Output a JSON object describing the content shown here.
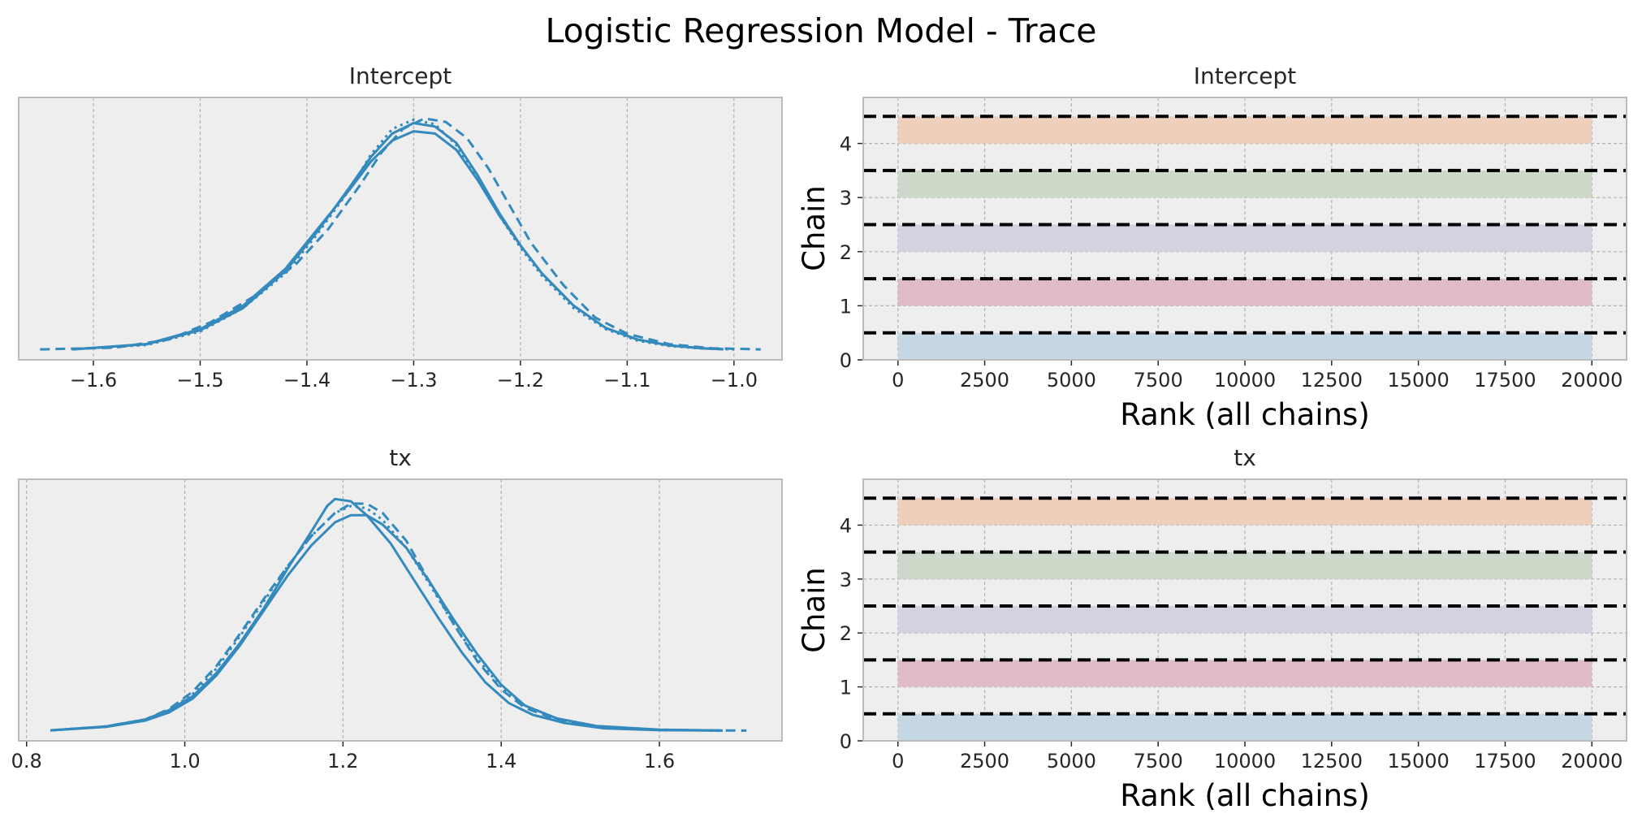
{
  "title": "Logistic Regression Model - Trace",
  "colors": {
    "kde": "#348abd",
    "panel_bg": "#eeeeee",
    "grid": "#b2b2b2",
    "frame": "#bcbcbc",
    "chain_fills": [
      "#c5d7e2",
      "#e0bdc6",
      "#d5d1e0",
      "#ccd9c8",
      "#edcfbc"
    ],
    "hline": "#000000"
  },
  "chart_data": [
    {
      "type": "line",
      "title": "Intercept",
      "xlabel": "",
      "ylabel": "",
      "xlim": [
        -1.67,
        -0.955
      ],
      "xticks": [
        -1.6,
        -1.5,
        -1.4,
        -1.3,
        -1.2,
        -1.1,
        -1.0
      ],
      "xtick_labels": [
        "−1.6",
        "−1.5",
        "−1.4",
        "−1.3",
        "−1.2",
        "−1.1",
        "−1.0"
      ],
      "yticks_visible": false,
      "grid": "x",
      "series": [
        {
          "linestyle": "solid",
          "x": [
            -1.62,
            -1.55,
            -1.5,
            -1.46,
            -1.42,
            -1.39,
            -1.36,
            -1.34,
            -1.32,
            -1.3,
            -1.28,
            -1.26,
            -1.24,
            -1.22,
            -1.2,
            -1.18,
            -1.15,
            -1.12,
            -1.09,
            -1.06,
            -1.03,
            -1.01
          ],
          "y": [
            0.003,
            0.025,
            0.085,
            0.18,
            0.34,
            0.51,
            0.7,
            0.83,
            0.93,
            0.975,
            0.96,
            0.89,
            0.75,
            0.59,
            0.45,
            0.33,
            0.19,
            0.095,
            0.045,
            0.02,
            0.008,
            0.004
          ]
        },
        {
          "linestyle": "dashed",
          "x": [
            -1.65,
            -1.58,
            -1.53,
            -1.49,
            -1.45,
            -1.41,
            -1.38,
            -1.35,
            -1.33,
            -1.31,
            -1.29,
            -1.27,
            -1.25,
            -1.23,
            -1.21,
            -1.19,
            -1.16,
            -1.13,
            -1.1,
            -1.06,
            -1.02,
            -0.975
          ],
          "y": [
            0.003,
            0.01,
            0.045,
            0.12,
            0.23,
            0.37,
            0.52,
            0.71,
            0.85,
            0.95,
            0.995,
            0.98,
            0.91,
            0.78,
            0.62,
            0.46,
            0.28,
            0.14,
            0.07,
            0.025,
            0.008,
            0.003
          ]
        },
        {
          "linestyle": "dotted",
          "x": [
            -1.62,
            -1.55,
            -1.5,
            -1.46,
            -1.42,
            -1.39,
            -1.36,
            -1.34,
            -1.32,
            -1.3,
            -1.28,
            -1.26,
            -1.24,
            -1.22,
            -1.2,
            -1.18,
            -1.15,
            -1.12,
            -1.09,
            -1.06,
            -1.03,
            -1.0
          ],
          "y": [
            0.004,
            0.022,
            0.08,
            0.18,
            0.33,
            0.5,
            0.69,
            0.84,
            0.95,
            0.99,
            0.97,
            0.88,
            0.74,
            0.58,
            0.44,
            0.32,
            0.18,
            0.09,
            0.04,
            0.017,
            0.007,
            0.003
          ]
        },
        {
          "linestyle": "solid",
          "x": [
            -1.62,
            -1.55,
            -1.5,
            -1.46,
            -1.42,
            -1.39,
            -1.36,
            -1.34,
            -1.32,
            -1.3,
            -1.28,
            -1.26,
            -1.24,
            -1.22,
            -1.2,
            -1.18,
            -1.15,
            -1.12,
            -1.09,
            -1.06,
            -1.03,
            -1.01
          ],
          "y": [
            0.003,
            0.026,
            0.09,
            0.19,
            0.35,
            0.52,
            0.69,
            0.81,
            0.9,
            0.94,
            0.93,
            0.86,
            0.73,
            0.58,
            0.45,
            0.33,
            0.19,
            0.095,
            0.045,
            0.02,
            0.008,
            0.004
          ]
        }
      ]
    },
    {
      "type": "bar",
      "title": "Intercept",
      "xlabel": "Rank (all chains)",
      "ylabel": "Chain",
      "xlim": [
        -1000,
        21000
      ],
      "ylim": [
        0,
        4.85
      ],
      "xticks": [
        0,
        2500,
        5000,
        7500,
        10000,
        12500,
        15000,
        17500,
        20000
      ],
      "yticks": [
        0,
        1,
        2,
        3,
        4
      ],
      "chains": [
        0,
        1,
        2,
        3,
        4
      ],
      "rank_range": [
        0,
        20000
      ],
      "bar_height": 0.5,
      "hlines": [
        0.5,
        1.5,
        2.5,
        3.5,
        4.5
      ],
      "grid": true
    },
    {
      "type": "line",
      "title": "tx",
      "xlabel": "",
      "ylabel": "",
      "xlim": [
        0.79,
        1.755
      ],
      "xticks": [
        0.8,
        1.0,
        1.2,
        1.4,
        1.6
      ],
      "xtick_labels": [
        "0.8",
        "1.0",
        "1.2",
        "1.4",
        "1.6"
      ],
      "yticks_visible": false,
      "grid": "x",
      "series": [
        {
          "linestyle": "solid",
          "x": [
            0.83,
            0.9,
            0.95,
            0.98,
            1.01,
            1.04,
            1.07,
            1.1,
            1.13,
            1.16,
            1.18,
            1.19,
            1.21,
            1.23,
            1.26,
            1.29,
            1.32,
            1.35,
            1.38,
            1.41,
            1.44,
            1.48,
            1.53,
            1.6,
            1.68
          ],
          "y": [
            0.003,
            0.02,
            0.05,
            0.09,
            0.15,
            0.25,
            0.38,
            0.53,
            0.7,
            0.86,
            0.97,
            1.0,
            0.99,
            0.93,
            0.81,
            0.65,
            0.49,
            0.34,
            0.21,
            0.12,
            0.07,
            0.035,
            0.012,
            0.004,
            0.002
          ]
        },
        {
          "linestyle": "dashed",
          "x": [
            0.83,
            0.9,
            0.95,
            0.98,
            1.01,
            1.04,
            1.07,
            1.1,
            1.13,
            1.16,
            1.19,
            1.21,
            1.23,
            1.25,
            1.28,
            1.31,
            1.34,
            1.37,
            1.4,
            1.43,
            1.47,
            1.52,
            1.6,
            1.71
          ],
          "y": [
            0.003,
            0.02,
            0.05,
            0.095,
            0.17,
            0.28,
            0.42,
            0.57,
            0.71,
            0.84,
            0.94,
            0.98,
            0.98,
            0.94,
            0.82,
            0.64,
            0.46,
            0.3,
            0.18,
            0.1,
            0.05,
            0.02,
            0.005,
            0.002
          ]
        },
        {
          "linestyle": "dotted",
          "x": [
            0.83,
            0.9,
            0.95,
            0.98,
            1.01,
            1.04,
            1.07,
            1.1,
            1.13,
            1.16,
            1.19,
            1.21,
            1.23,
            1.25,
            1.28,
            1.31,
            1.34,
            1.37,
            1.4,
            1.43,
            1.47,
            1.52,
            1.6,
            1.68
          ],
          "y": [
            0.003,
            0.02,
            0.05,
            0.09,
            0.16,
            0.27,
            0.41,
            0.56,
            0.71,
            0.84,
            0.94,
            0.97,
            0.96,
            0.91,
            0.79,
            0.63,
            0.46,
            0.31,
            0.19,
            0.11,
            0.055,
            0.022,
            0.006,
            0.002
          ]
        },
        {
          "linestyle": "solid",
          "x": [
            0.83,
            0.9,
            0.95,
            0.98,
            1.01,
            1.04,
            1.07,
            1.1,
            1.13,
            1.16,
            1.19,
            1.21,
            1.23,
            1.25,
            1.28,
            1.31,
            1.34,
            1.37,
            1.4,
            1.43,
            1.47,
            1.52,
            1.6,
            1.68
          ],
          "y": [
            0.003,
            0.018,
            0.045,
            0.08,
            0.14,
            0.24,
            0.37,
            0.52,
            0.67,
            0.8,
            0.9,
            0.93,
            0.93,
            0.89,
            0.79,
            0.64,
            0.48,
            0.33,
            0.2,
            0.11,
            0.055,
            0.022,
            0.006,
            0.002
          ]
        }
      ]
    },
    {
      "type": "bar",
      "title": "tx",
      "xlabel": "Rank (all chains)",
      "ylabel": "Chain",
      "xlim": [
        -1000,
        21000
      ],
      "ylim": [
        0,
        4.85
      ],
      "xticks": [
        0,
        2500,
        5000,
        7500,
        10000,
        12500,
        15000,
        17500,
        20000
      ],
      "yticks": [
        0,
        1,
        2,
        3,
        4
      ],
      "chains": [
        0,
        1,
        2,
        3,
        4
      ],
      "rank_range": [
        0,
        20000
      ],
      "bar_height": 0.5,
      "hlines": [
        0.5,
        1.5,
        2.5,
        3.5,
        4.5
      ],
      "grid": true
    }
  ]
}
